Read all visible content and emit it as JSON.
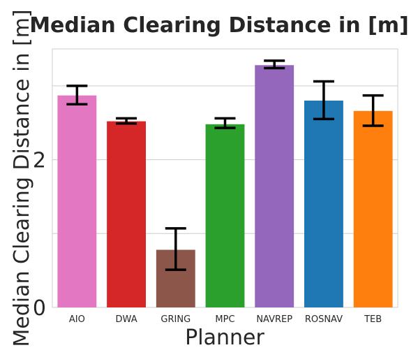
{
  "chart_data": {
    "type": "bar",
    "title": "Median Clearing Distance in [m]",
    "xlabel": "Planner",
    "ylabel": "Median Clearing Distance in [m]",
    "categories": [
      "AIO",
      "DWA",
      "GRING",
      "MPC",
      "NAVREP",
      "ROSNAV",
      "TEB"
    ],
    "values": [
      2.87,
      2.52,
      0.78,
      2.48,
      3.28,
      2.8,
      2.66
    ],
    "error_low": [
      2.75,
      2.49,
      0.51,
      2.43,
      3.24,
      2.55,
      2.46
    ],
    "error_high": [
      3.0,
      2.56,
      1.07,
      2.56,
      3.34,
      3.06,
      2.87
    ],
    "colors": [
      "#e377c2",
      "#d62728",
      "#8c564b",
      "#2ca02c",
      "#9467bd",
      "#1f77b4",
      "#ff7f0e"
    ],
    "ylim": [
      0,
      3.5
    ],
    "yticks": [
      0,
      2
    ],
    "ytick_labels": [
      "0",
      "2"
    ],
    "gridlines": [
      0,
      1,
      2,
      3
    ],
    "grid": true
  }
}
